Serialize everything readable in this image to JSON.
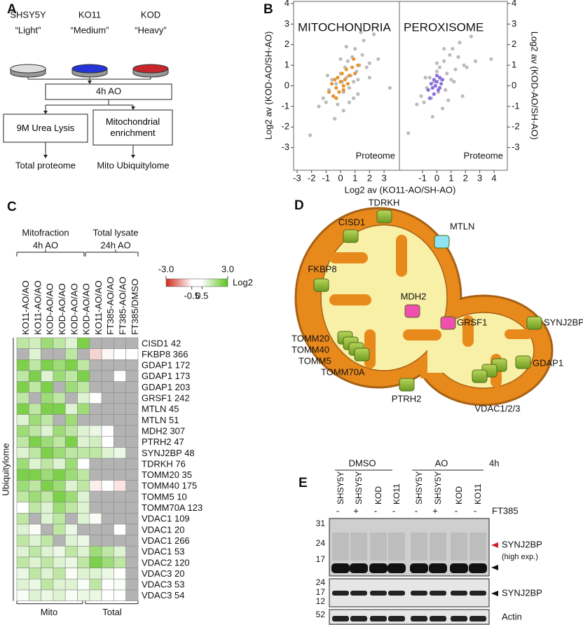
{
  "panel_a": {
    "letter": "A",
    "dishes": [
      {
        "name": "SHSY5Y",
        "label": "“Light”",
        "color": "#dedede"
      },
      {
        "name": "KO11",
        "label": "“Medium”",
        "color": "#2434d8"
      },
      {
        "name": "KOD",
        "label": "“Heavy”",
        "color": "#c8262c"
      }
    ],
    "treatment": "4h AO",
    "branches": [
      {
        "step": "9M Urea Lysis",
        "result": "Total proteome"
      },
      {
        "step": "Mitochondrial enrichment",
        "result": "Mito Ubiquitylome"
      }
    ]
  },
  "panel_b": {
    "letter": "B"
  },
  "chart_data": [
    {
      "type": "scatter",
      "xlim": [
        -3.24,
        4.06
      ],
      "ylim": [
        -4.1,
        4.1
      ],
      "xticks": [
        -3,
        -2,
        -1,
        0,
        1,
        2,
        3
      ],
      "yticks": [
        -3,
        -2,
        -1,
        0,
        1,
        2,
        3,
        4
      ],
      "xlabel": "Log2 av (KO11-AO/SH-AO)",
      "ylabel": "Log2 av (KOD-AO/SH-AO)",
      "annotation": "Proteome",
      "series": [
        {
          "color": "#bbbbbb",
          "x": [
            -2.1,
            -1.5,
            -1.2,
            -1.0,
            -0.8,
            -0.6,
            -0.5,
            -0.3,
            -0.2,
            0,
            0.1,
            0.2,
            0.3,
            0.4,
            0.5,
            0.6,
            0.7,
            0.8,
            0.9,
            1.0,
            1.1,
            1.2,
            1.3,
            1.5,
            1.6,
            1.8,
            2.0,
            2.3,
            2.6,
            3.4,
            -0.4,
            0.2,
            0.6,
            1.2,
            -0.9,
            0.0,
            0.4,
            0.9,
            2.0,
            1.4
          ],
          "values": [
            -2.4,
            -1.0,
            -0.6,
            -0.8,
            -0.2,
            0.3,
            -0.5,
            0.1,
            -0.9,
            0.6,
            0.2,
            -0.3,
            0.9,
            0.4,
            1.2,
            -0.1,
            0.5,
            1.4,
            0.2,
            1.8,
            0.7,
            -0.4,
            1.0,
            1.5,
            2.2,
            0.9,
            1.1,
            2.5,
            1.3,
            -0.1,
            -1.6,
            -1.2,
            -0.8,
            0.3,
            0.5,
            1.3,
            1.9,
            -0.6,
            0.4,
            2.6
          ]
        },
        {
          "name": "MITOCHONDRIA",
          "color": "#e8922e",
          "x": [
            -0.8,
            -0.6,
            -0.5,
            -0.4,
            -0.3,
            -0.2,
            -0.1,
            0,
            0.1,
            0.2,
            0.3,
            0.4,
            0.5,
            0.6,
            0.8,
            1.0,
            0.9,
            1.2,
            -0.3,
            0.2
          ],
          "values": [
            -0.3,
            0.1,
            -0.5,
            0.3,
            -0.1,
            0.4,
            -0.3,
            0.2,
            0.6,
            -0.2,
            0.3,
            0.8,
            0.1,
            0.5,
            0.9,
            0.6,
            1.3,
            1.0,
            -0.6,
            0.0
          ]
        }
      ]
    },
    {
      "type": "scatter",
      "xlim": [
        -2.62,
        4.93
      ],
      "ylim": [
        -4.1,
        4.1
      ],
      "xticks": [
        -1,
        0,
        1,
        2,
        3,
        4
      ],
      "yticks": [
        -3,
        -2,
        -1,
        0,
        1,
        2,
        3,
        4
      ],
      "ylabel": "Log2 av (KOD-AO/SH-AO)",
      "annotation": "Proteome",
      "series": [
        {
          "color": "#bbbbbb",
          "x": [
            -2.0,
            -1.4,
            -1.1,
            -0.9,
            -0.7,
            -0.5,
            -0.4,
            -0.2,
            0,
            0.1,
            0.2,
            0.3,
            0.5,
            0.6,
            0.7,
            0.9,
            1.0,
            1.1,
            1.3,
            1.5,
            1.6,
            1.9,
            2.1,
            2.4,
            2.7,
            3.8,
            -0.3,
            0.4,
            0.8,
            1.2,
            -0.8,
            0.0,
            0.5,
            1.8
          ],
          "values": [
            -2.3,
            -0.9,
            -0.5,
            -0.8,
            -0.1,
            0.4,
            -0.6,
            0.2,
            0.7,
            -0.3,
            0.9,
            0.3,
            1.2,
            -0.2,
            0.6,
            1.5,
            0.3,
            1.8,
            0.8,
            1.4,
            2.1,
            1.0,
            0.9,
            2.4,
            1.2,
            1.3,
            -1.5,
            -1.1,
            -0.7,
            0.2,
            0.4,
            1.1,
            1.8,
            -0.5
          ]
        },
        {
          "name": "PEROXISOME",
          "color": "#8a6fe0",
          "x": [
            -0.6,
            -0.4,
            -0.3,
            -0.2,
            -0.1,
            0,
            0.1,
            0.2,
            0.3,
            -0.5,
            0.4,
            -0.2,
            0.0,
            0.2
          ],
          "values": [
            -0.2,
            0.1,
            -0.1,
            0.3,
            0.0,
            0.2,
            -0.2,
            0.4,
            0.1,
            -0.6,
            0.3,
            -0.4,
            0.5,
            -0.1
          ]
        }
      ]
    }
  ],
  "panel_c": {
    "letter": "C",
    "headers": [
      {
        "title": "Mitofraction",
        "subtitle": "4h AO"
      },
      {
        "title": "Total lysate",
        "subtitle": "24h AO"
      }
    ],
    "columns": [
      "KO11-AO/AO",
      "KO11-AO/AO",
      "KOD-AO/AO",
      "KOD-AO/AO",
      "KOD-AO/AO",
      "KOD-AO/AO",
      "KO11-AO/AO",
      "FT385-AO/AO",
      "FT385-AO/AO",
      "FT385/DMSO"
    ],
    "rows": [
      "CISD1 42",
      "FKBP8 366",
      "GDAP1 172",
      "GDAP1 173",
      "GDAP1 203",
      "GRSF1 242",
      "MTLN 45",
      "MTLN 51",
      "MDH2 307",
      "PTRH2 47",
      "SYNJ2BP 48",
      "TDRKH 76",
      "TOMM20 35",
      "TOMM40 175",
      "TOMM5 10",
      "TOMM70A 123",
      "VDAC1 109",
      "VDAC1 20",
      "VDAC1 266",
      "VDAC1 53",
      "VDAC2 120",
      "VDAC3 20",
      "VDAC3 53",
      "VDAC3 54"
    ],
    "values": [
      [
        1.5,
        1.2,
        2.0,
        1.5,
        1.0,
        2.5,
        null,
        null,
        null,
        null
      ],
      [
        null,
        1.0,
        null,
        null,
        1.5,
        null,
        -1.0,
        -0.6,
        0.2,
        -0.5
      ],
      [
        2.5,
        1.5,
        2.5,
        2.0,
        2.5,
        1.5,
        null,
        null,
        null,
        null
      ],
      [
        1.5,
        2.5,
        1.0,
        2.0,
        1.5,
        2.5,
        null,
        null,
        0.3,
        null
      ],
      [
        2.5,
        1.5,
        2.5,
        null,
        2.0,
        1.5,
        null,
        null,
        null,
        null
      ],
      [
        1.5,
        null,
        2.0,
        1.5,
        null,
        1.0,
        0.2,
        null,
        null,
        null
      ],
      [
        2.5,
        1.5,
        2.5,
        2.5,
        1.0,
        2.0,
        null,
        null,
        null,
        null
      ],
      [
        1.0,
        2.0,
        1.5,
        null,
        2.0,
        null,
        null,
        null,
        null,
        null
      ],
      [
        2.0,
        1.5,
        1.0,
        2.0,
        1.5,
        1.0,
        0.8,
        0.2,
        null,
        null
      ],
      [
        1.5,
        2.5,
        2.0,
        1.5,
        2.5,
        1.0,
        1.2,
        0.5,
        null,
        null
      ],
      [
        1.0,
        1.5,
        2.5,
        2.0,
        1.5,
        1.5,
        1.5,
        1.0,
        0.8,
        null
      ],
      [
        2.0,
        1.0,
        1.5,
        1.0,
        2.0,
        0.5,
        null,
        null,
        null,
        null
      ],
      [
        2.5,
        2.5,
        2.0,
        2.5,
        2.0,
        1.5,
        null,
        null,
        null,
        null
      ],
      [
        2.0,
        1.5,
        2.5,
        2.0,
        1.0,
        1.5,
        -0.7,
        0.2,
        -0.8,
        null
      ],
      [
        1.5,
        2.0,
        1.5,
        2.5,
        2.0,
        1.0,
        null,
        null,
        null,
        null
      ],
      [
        0.2,
        1.5,
        1.0,
        2.0,
        1.5,
        1.0,
        null,
        null,
        null,
        null
      ],
      [
        1.5,
        null,
        1.0,
        1.5,
        null,
        1.0,
        0.6,
        null,
        null,
        null
      ],
      [
        1.0,
        0.6,
        null,
        1.5,
        0.8,
        null,
        null,
        null,
        0.3,
        null
      ],
      [
        1.5,
        1.0,
        1.5,
        null,
        1.0,
        0.8,
        null,
        null,
        null,
        null
      ],
      [
        1.0,
        1.5,
        1.0,
        0.8,
        1.5,
        1.0,
        2.0,
        1.5,
        1.0,
        null
      ],
      [
        1.5,
        1.0,
        1.5,
        1.0,
        0.8,
        1.5,
        2.5,
        2.0,
        1.5,
        null
      ],
      [
        0.8,
        1.5,
        1.0,
        1.5,
        0.6,
        1.0,
        1.0,
        0.8,
        0.5,
        null
      ],
      [
        1.0,
        0.8,
        1.5,
        1.0,
        1.0,
        0.6,
        1.5,
        0.3,
        0.6,
        null
      ],
      [
        0.6,
        1.0,
        0.8,
        1.0,
        0.6,
        0.8,
        0.8,
        0.5,
        0.3,
        null
      ]
    ],
    "side_label": "Ubiquitylome",
    "footers": [
      "Mito",
      "Total"
    ],
    "scale": {
      "ticks": [
        {
          "value": -3,
          "label": "-3.0"
        },
        -0.5,
        0.5,
        {
          "value": 3,
          "label": "3.0"
        }
      ],
      "label": "Log2",
      "colors": [
        "#d2281a",
        "#ffffff",
        "#5cc41c"
      ],
      "missing_color": "#b3b3b3"
    }
  },
  "panel_d": {
    "letter": "D",
    "proteins": [
      "TDRKH",
      "CISD1",
      "MTLN",
      "FKBP8",
      "MDH2",
      "GRSF1",
      "SYNJ2BP",
      "TOMM20",
      "TOMM40",
      "TOMM5",
      "TOMM70A",
      "GDAP1",
      "PTRH2",
      "VDAC1/2/3"
    ]
  },
  "panel_e": {
    "letter": "E",
    "groups": [
      "DMSO",
      "AO"
    ],
    "time": "4h",
    "lanes": [
      {
        "ft385": "-",
        "cell": "SHSY5Y"
      },
      {
        "ft385": "+",
        "cell": "SHSY5Y"
      },
      {
        "ft385": "-",
        "cell": "KOD"
      },
      {
        "ft385": "-",
        "cell": "KO11"
      },
      {
        "ft385": "-",
        "cell": "SHSY5Y"
      },
      {
        "ft385": "+",
        "cell": "SHSY5Y"
      },
      {
        "ft385": "-",
        "cell": "KOD"
      },
      {
        "ft385": "-",
        "cell": "KO11"
      }
    ],
    "ft385_label": "FT385",
    "blots": [
      {
        "markers": [
          "31",
          "24",
          "17"
        ],
        "label": "SYNJ2BP",
        "note": "(high exp.)"
      },
      {
        "markers": [
          "24",
          "17",
          "12"
        ],
        "label": "SYNJ2BP"
      },
      {
        "markers": [
          "52"
        ],
        "label": "Actin"
      }
    ]
  }
}
